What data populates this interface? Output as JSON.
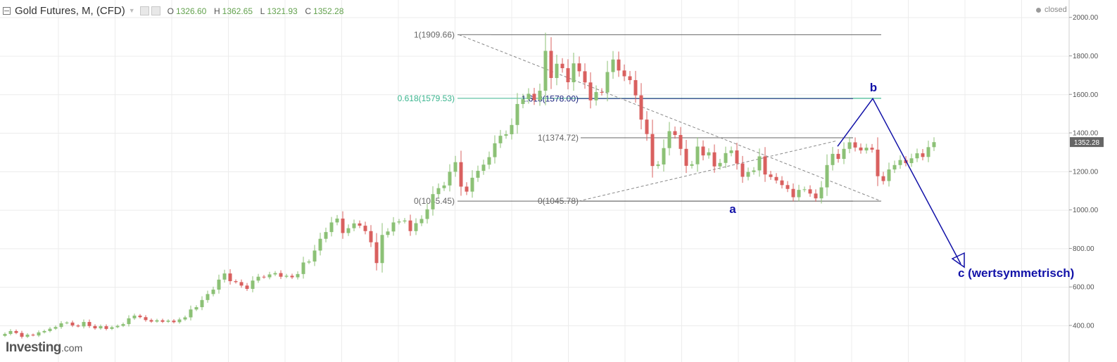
{
  "header": {
    "title": "Gold Futures, M, (CFD)",
    "ohlc": [
      {
        "key": "O",
        "value": "1326.60"
      },
      {
        "key": "H",
        "value": "1362.65"
      },
      {
        "key": "L",
        "value": "1321.93"
      },
      {
        "key": "C",
        "value": "1352.28"
      }
    ]
  },
  "status": {
    "label": "closed"
  },
  "logo": {
    "text": "Investing",
    "suffix": ".com"
  },
  "chart_data": {
    "type": "candlestick",
    "title": "Gold Futures, M, (CFD)",
    "colors": {
      "up": "#8cc176",
      "down": "#d9605f",
      "grid": "#ececec",
      "fib_618": "#3bb58f",
      "wave": "#1212a8",
      "line": "#666666"
    },
    "ylim": [
      300,
      2050
    ],
    "y_ticks": [
      "2000.00",
      "1800.00",
      "1600.00",
      "1400.00",
      "1200.00",
      "1000.00",
      "800.00",
      "600.00",
      "400.00"
    ],
    "last_price": "1352.28",
    "candles_close": [
      356,
      371,
      361,
      341,
      352,
      348,
      364,
      371,
      383,
      392,
      411,
      415,
      400,
      395,
      418,
      397,
      385,
      396,
      382,
      391,
      398,
      407,
      437,
      451,
      443,
      428,
      420,
      427,
      419,
      425,
      417,
      431,
      442,
      483,
      495,
      532,
      563,
      586,
      638,
      670,
      630,
      625,
      607,
      590,
      633,
      653,
      650,
      665,
      672,
      653,
      658,
      650,
      667,
      727,
      732,
      789,
      850,
      885,
      935,
      955,
      880,
      905,
      930,
      918,
      890,
      832,
      724,
      870,
      888,
      935,
      940,
      945,
      890,
      931,
      953,
      1003,
      1082,
      1113,
      1127,
      1198,
      1248,
      1121,
      1095,
      1167,
      1203,
      1235,
      1274,
      1346,
      1385,
      1393,
      1441,
      1550,
      1575,
      1603,
      1570,
      1619,
      1826,
      1685,
      1759,
      1736,
      1663,
      1761,
      1720,
      1662,
      1569,
      1612,
      1610,
      1716,
      1781,
      1724,
      1694,
      1674,
      1595,
      1469,
      1394,
      1228,
      1236,
      1321,
      1409,
      1389,
      1317,
      1229,
      1237,
      1329,
      1283,
      1299,
      1226,
      1244,
      1295,
      1309,
      1241,
      1172,
      1197,
      1205,
      1278,
      1184,
      1171,
      1153,
      1129,
      1109,
      1066,
      1104,
      1107,
      1085,
      1060,
      1117,
      1233,
      1291,
      1265,
      1317,
      1351,
      1324,
      1309,
      1323,
      1313,
      1175,
      1150,
      1210,
      1233,
      1259,
      1243,
      1268,
      1294,
      1275,
      1326,
      1352
    ],
    "fib_levels": [
      {
        "label": "1(1909.66)",
        "value": 1909.66,
        "color": "#666666"
      },
      {
        "label": "0.618(1579.53)",
        "value": 1579.53,
        "color": "#3bb58f"
      },
      {
        "label": "0(1045.45)",
        "value": 1045.45,
        "color": "#666666"
      }
    ],
    "fib_levels_2": [
      {
        "label": "1.618(1578.00)",
        "value": 1578.0,
        "color": "#1a237e"
      },
      {
        "label": "1(1374.72)",
        "value": 1374.72,
        "color": "#666666"
      },
      {
        "label": "0(1045.78)",
        "value": 1045.78,
        "color": "#666666"
      }
    ],
    "wave_labels": [
      {
        "text": "a",
        "value": 1045.78
      },
      {
        "text": "b",
        "value": 1578.0
      },
      {
        "text": "c (wertsymmetrisch)",
        "value": 700
      }
    ]
  }
}
